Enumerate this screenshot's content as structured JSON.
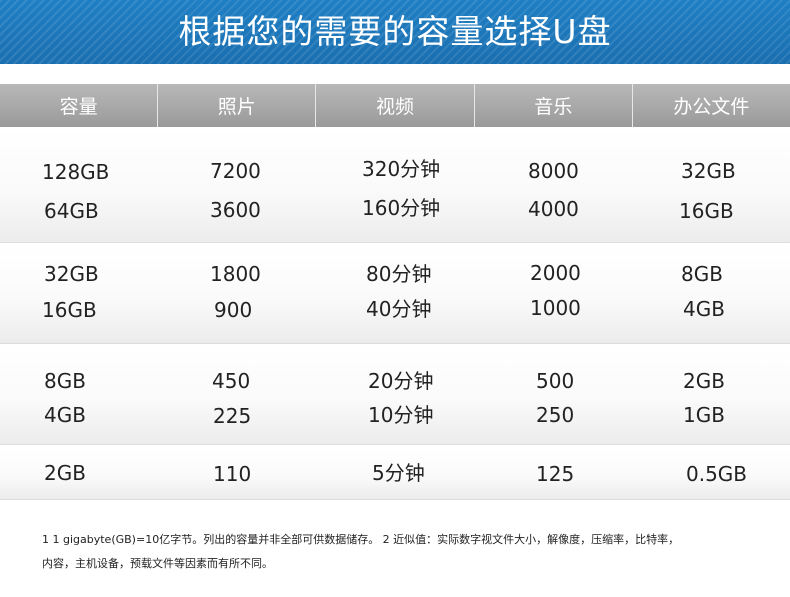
{
  "banner": {
    "title": "根据您的需要的容量选择U盘"
  },
  "header": [
    "容量",
    "照片",
    "视频",
    "音乐",
    "办公文件"
  ],
  "rows": [
    [
      "128GB",
      "7200",
      "320分钟",
      "8000",
      "32GB"
    ],
    [
      "64GB",
      "3600",
      "160分钟",
      "4000",
      "16GB"
    ],
    [
      "32GB",
      "1800",
      "80分钟",
      "2000",
      "8GB"
    ],
    [
      "16GB",
      "900",
      "40分钟",
      "1000",
      "4GB"
    ],
    [
      "8GB",
      "450",
      "20分钟",
      "500",
      "2GB"
    ],
    [
      "4GB",
      "225",
      "10分钟",
      "250",
      "1GB"
    ],
    [
      "2GB",
      "110",
      "5分钟",
      "125",
      "0.5GB"
    ]
  ],
  "footnote": {
    "line1": "1 1 gigabyte(GB)=10亿字节。列出的容量并非全部可供数据储存。 2  近似值：实际数字视文件大小，解像度，压缩率，比特率，",
    "line2": "内容，主机设备，预载文件等因素而有所不同。"
  },
  "colors": {
    "banner": "#1f7fc4",
    "header": "#a8a8a8",
    "text": "#222222"
  }
}
